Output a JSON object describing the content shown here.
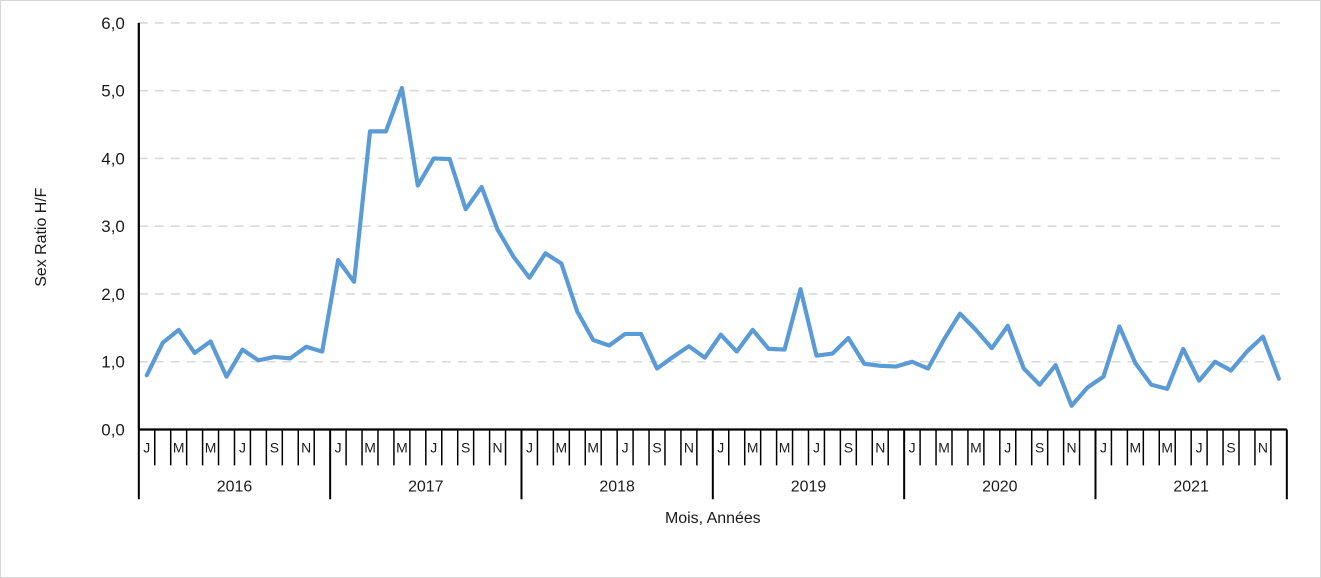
{
  "chart_data": {
    "type": "line",
    "title": "",
    "xlabel": "Mois, Années",
    "ylabel": "Sex Ratio H/F",
    "ylim": [
      0,
      6
    ],
    "ytick_step": 1,
    "ytick_labels": [
      "0,0",
      "1,0",
      "2,0",
      "3,0",
      "4,0",
      "5,0",
      "6,0"
    ],
    "grid": "horizontal-dashed",
    "legend": "none",
    "years": [
      "2016",
      "2017",
      "2018",
      "2019",
      "2020",
      "2021"
    ],
    "month_label_pattern": [
      "J",
      "",
      "M",
      "",
      "M",
      "",
      "J",
      "",
      "S",
      "",
      "N",
      ""
    ],
    "series": [
      {
        "name": "Sex Ratio H/F",
        "color": "#5B9BD5",
        "values": [
          0.8,
          1.28,
          1.47,
          1.13,
          1.3,
          0.78,
          1.18,
          1.02,
          1.07,
          1.05,
          1.22,
          1.15,
          2.5,
          2.18,
          4.4,
          4.4,
          5.04,
          3.6,
          4.0,
          3.99,
          3.25,
          3.58,
          2.95,
          2.55,
          2.24,
          2.6,
          2.45,
          1.74,
          1.32,
          1.24,
          1.41,
          1.41,
          0.9,
          1.07,
          1.23,
          1.06,
          1.4,
          1.15,
          1.47,
          1.19,
          1.18,
          2.07,
          1.09,
          1.12,
          1.35,
          0.97,
          0.94,
          0.93,
          1.0,
          0.9,
          1.33,
          1.71,
          1.47,
          1.2,
          1.53,
          0.9,
          0.66,
          0.95,
          0.35,
          0.62,
          0.78,
          1.52,
          0.98,
          0.66,
          0.6,
          1.19,
          0.72,
          1.0,
          0.87,
          1.15,
          1.37,
          0.75
        ]
      }
    ],
    "colors": {
      "line": "#5B9BD5",
      "gridline": "#D9D9D9",
      "axis": "#000000",
      "canvas_border": "#D6D6D6",
      "background": "#FFFFFF",
      "text": "#1A1A1A"
    }
  }
}
